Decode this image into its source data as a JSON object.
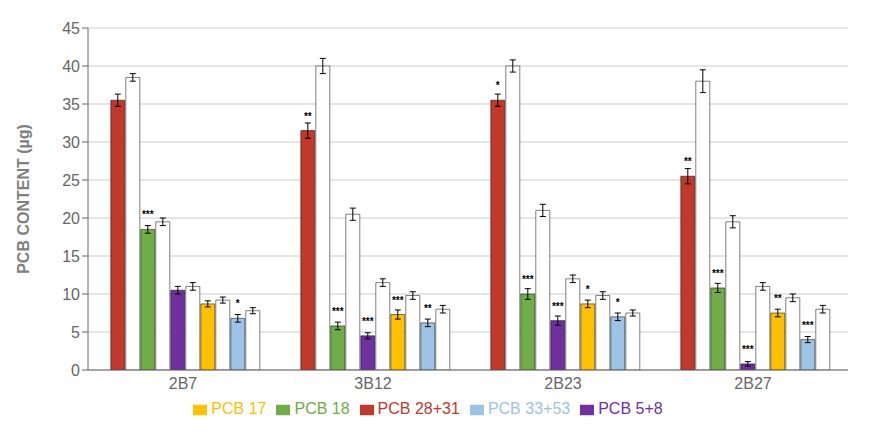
{
  "chart_data": {
    "type": "bar",
    "categories": [
      "2B7",
      "3B12",
      "2B23",
      "2B27"
    ],
    "ylabel": "PCB CONTENT (µg)",
    "ylim": [
      0,
      45
    ],
    "yticks": [
      0,
      5,
      10,
      15,
      20,
      25,
      30,
      35,
      40,
      45
    ],
    "grid": true,
    "legend": "bottom",
    "series": [
      {
        "name": "PCB 28+31",
        "color": "#c0392b",
        "values": [
          35.5,
          31.5,
          35.5,
          25.5
        ],
        "errors": [
          0.8,
          1.0,
          0.8,
          1.0
        ],
        "significance": [
          null,
          "**",
          "*",
          "**"
        ]
      },
      {
        "color": "#ffffff",
        "values": [
          38.5,
          40.0,
          40.0,
          38.0
        ],
        "errors": [
          0.5,
          1.0,
          0.8,
          1.5
        ]
      },
      {
        "name": "PCB 18",
        "color": "#70ad47",
        "values": [
          18.5,
          5.8,
          10.0,
          10.8
        ],
        "errors": [
          0.5,
          0.5,
          0.7,
          0.6
        ],
        "significance": [
          "***",
          "***",
          "***",
          "***"
        ]
      },
      {
        "color": "#ffffff",
        "values": [
          19.5,
          20.5,
          21.0,
          19.5
        ],
        "errors": [
          0.5,
          0.8,
          0.8,
          0.8
        ]
      },
      {
        "name": "PCB 5+8",
        "color": "#7030a0",
        "values": [
          10.5,
          4.5,
          6.5,
          0.8
        ],
        "errors": [
          0.5,
          0.4,
          0.6,
          0.3
        ],
        "significance": [
          null,
          "***",
          "***",
          "***"
        ]
      },
      {
        "color": "#ffffff",
        "values": [
          11.0,
          11.5,
          12.0,
          11.0
        ],
        "errors": [
          0.5,
          0.5,
          0.5,
          0.5
        ]
      },
      {
        "name": "PCB 17",
        "color": "#ffc000",
        "values": [
          8.7,
          7.3,
          8.7,
          7.5
        ],
        "errors": [
          0.4,
          0.6,
          0.5,
          0.5
        ],
        "significance": [
          null,
          "***",
          "*",
          "**"
        ]
      },
      {
        "color": "#ffffff",
        "values": [
          9.2,
          9.8,
          9.8,
          9.5
        ],
        "errors": [
          0.4,
          0.5,
          0.5,
          0.5
        ]
      },
      {
        "name": "PCB 33+53",
        "color": "#9dc3e6",
        "values": [
          6.8,
          6.2,
          7.0,
          4.0
        ],
        "errors": [
          0.5,
          0.5,
          0.5,
          0.4
        ],
        "significance": [
          "*",
          "**",
          "*",
          "***"
        ]
      },
      {
        "color": "#ffffff",
        "values": [
          7.8,
          8.0,
          7.5,
          8.0
        ],
        "errors": [
          0.4,
          0.5,
          0.4,
          0.5
        ]
      }
    ]
  }
}
